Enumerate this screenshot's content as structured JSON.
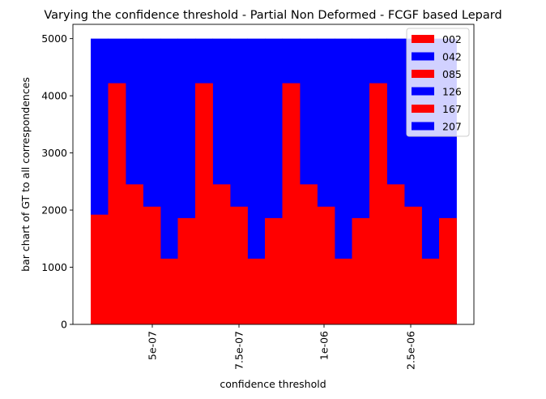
{
  "chart_data": {
    "type": "bar",
    "title": "Varying the confidence threshold - Partial Non Deformed -  FCGF based Lepard",
    "xlabel": "confidence threshold",
    "ylabel": "bar chart of GT to all correspondences",
    "ylim": [
      0,
      5250
    ],
    "yticks": [
      0,
      1000,
      2000,
      3000,
      4000,
      5000
    ],
    "xticks": [
      "5e-07",
      "7.5e-07",
      "1e-06",
      "2.5e-06"
    ],
    "grid": false,
    "legend_position": "top-right",
    "legend": [
      {
        "label": "002",
        "color": "#ff0000"
      },
      {
        "label": "042",
        "color": "#0000ff"
      },
      {
        "label": "085",
        "color": "#ff0000"
      },
      {
        "label": "126",
        "color": "#0000ff"
      },
      {
        "label": "167",
        "color": "#ff0000"
      },
      {
        "label": "207",
        "color": "#0000ff"
      }
    ],
    "series": [
      {
        "color": "#0000ff",
        "values": [
          5000,
          5000,
          5000,
          5000,
          5000,
          5000,
          5000,
          5000,
          5000,
          5000,
          5000,
          5000,
          5000,
          5000,
          5000,
          5000,
          5000,
          5000,
          5000,
          5000,
          5000
        ]
      },
      {
        "color": "#ff0000",
        "values": [
          1920,
          4220,
          2450,
          2060,
          1150,
          1860,
          4220,
          2450,
          2060,
          1150,
          1860,
          4220,
          2450,
          2060,
          1150,
          1860,
          4220,
          2450,
          2060,
          1150,
          1860
        ]
      }
    ]
  }
}
